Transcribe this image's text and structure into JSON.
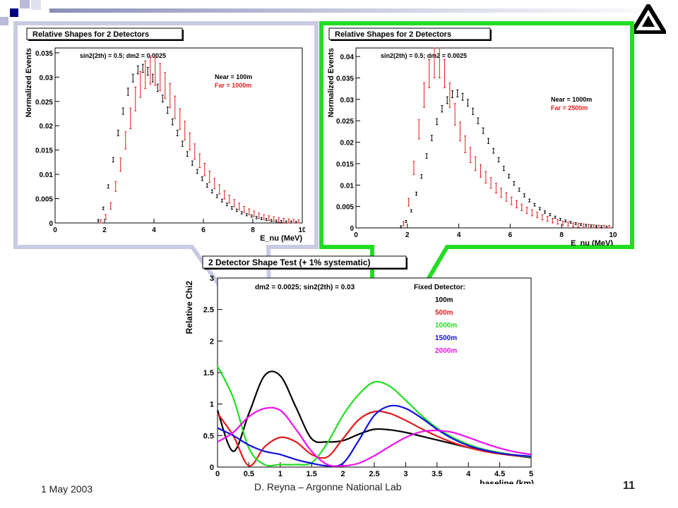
{
  "slide": {
    "date": "1 May 2003",
    "author": "D. Reyna – Argonne National Lab",
    "page": "11"
  },
  "colors": {
    "callout_left": "#c9cbe3",
    "callout_right": "#22dd22",
    "near": "#000000",
    "far": "#e31a1c"
  },
  "chart_data": [
    {
      "type": "line",
      "title": "Relative Shapes for 2 Detectors",
      "annotation": "sin2(2th) = 0.5; dm2 = 0.0025",
      "xlabel": "E_nu (MeV)",
      "ylabel": "Normalized Events",
      "xlim": [
        0,
        10
      ],
      "ylim": [
        0,
        0.036
      ],
      "xticks": [
        "0",
        "2",
        "4",
        "6",
        "8",
        "10"
      ],
      "yticks": [
        "0",
        "0.005",
        "0.01",
        "0.015",
        "0.02",
        "0.025",
        "0.03",
        "0.035"
      ],
      "legend": [
        {
          "name": "Near = 100m",
          "color": "#000000"
        },
        {
          "name": "Far = 1000m",
          "color": "#e31a1c"
        }
      ],
      "x": [
        1.8,
        2.0,
        2.2,
        2.4,
        2.6,
        2.8,
        3.0,
        3.2,
        3.4,
        3.6,
        3.8,
        4.0,
        4.2,
        4.4,
        4.6,
        4.8,
        5.0,
        5.2,
        5.4,
        5.6,
        5.8,
        6.0,
        6.2,
        6.4,
        6.6,
        6.8,
        7.0,
        7.2,
        7.4,
        7.6,
        7.8,
        8.0,
        8.2,
        8.4,
        8.6,
        8.8,
        9.0,
        9.2,
        9.4,
        9.6,
        9.8
      ],
      "series": [
        {
          "name": "Near = 100m",
          "values": [
            0.0005,
            0.003,
            0.0075,
            0.013,
            0.0185,
            0.023,
            0.027,
            0.0298,
            0.0315,
            0.0318,
            0.0312,
            0.0298,
            0.0278,
            0.0256,
            0.0232,
            0.0208,
            0.0185,
            0.0163,
            0.0142,
            0.0123,
            0.0106,
            0.0091,
            0.0077,
            0.0065,
            0.0055,
            0.0046,
            0.0038,
            0.0031,
            0.0026,
            0.0021,
            0.0017,
            0.0014,
            0.0011,
            0.0009,
            0.0007,
            0.0005,
            0.0004,
            0.0003,
            0.0002,
            0.0002,
            0.0001
          ]
        },
        {
          "name": "Far = 1000m",
          "values": [
            0.0002,
            0.0012,
            0.0035,
            0.0075,
            0.012,
            0.017,
            0.0215,
            0.0255,
            0.0285,
            0.0305,
            0.0315,
            0.0312,
            0.03,
            0.0283,
            0.0262,
            0.0238,
            0.0214,
            0.019,
            0.0168,
            0.0147,
            0.0128,
            0.011,
            0.0095,
            0.0081,
            0.0069,
            0.0058,
            0.0049,
            0.0041,
            0.0034,
            0.0028,
            0.0023,
            0.0019,
            0.0015,
            0.0012,
            0.001,
            0.0008,
            0.0006,
            0.0005,
            0.0004,
            0.0003,
            0.0002
          ]
        }
      ]
    },
    {
      "type": "line",
      "title": "Relative Shapes for 2 Detectors",
      "annotation": "sin2(2th) = 0.5; dm2 = 0.0025",
      "xlabel": "E_nu (MeV)",
      "ylabel": "Normalized Events",
      "xlim": [
        0,
        10
      ],
      "ylim": [
        0,
        0.042
      ],
      "xticks": [
        "0",
        "2",
        "4",
        "6",
        "8",
        "10"
      ],
      "yticks": [
        "0",
        "0.005",
        "0.01",
        "0.015",
        "0.02",
        "0.025",
        "0.03",
        "0.035",
        "0.04"
      ],
      "legend": [
        {
          "name": "Near = 1000m",
          "color": "#000000"
        },
        {
          "name": "Far = 2500m",
          "color": "#e31a1c"
        }
      ],
      "x": [
        1.8,
        2.0,
        2.2,
        2.4,
        2.6,
        2.8,
        3.0,
        3.2,
        3.4,
        3.6,
        3.8,
        4.0,
        4.2,
        4.4,
        4.6,
        4.8,
        5.0,
        5.2,
        5.4,
        5.6,
        5.8,
        6.0,
        6.2,
        6.4,
        6.6,
        6.8,
        7.0,
        7.2,
        7.4,
        7.6,
        7.8,
        8.0,
        8.2,
        8.4,
        8.6,
        8.8,
        9.0,
        9.2,
        9.4,
        9.6,
        9.8
      ],
      "series": [
        {
          "name": "Near = 1000m",
          "values": [
            0.0003,
            0.0015,
            0.004,
            0.008,
            0.012,
            0.0168,
            0.021,
            0.0248,
            0.0278,
            0.0298,
            0.0312,
            0.0314,
            0.0306,
            0.0292,
            0.0272,
            0.025,
            0.0227,
            0.0203,
            0.018,
            0.0159,
            0.0139,
            0.0121,
            0.0104,
            0.0089,
            0.0076,
            0.0064,
            0.0054,
            0.0045,
            0.0037,
            0.0031,
            0.0025,
            0.002,
            0.0016,
            0.0013,
            0.001,
            0.0008,
            0.0006,
            0.0005,
            0.0004,
            0.0003,
            0.0002
          ]
        },
        {
          "name": "Far = 2500m",
          "values": [
            0.001,
            0.006,
            0.014,
            0.023,
            0.031,
            0.036,
            0.0385,
            0.0385,
            0.036,
            0.031,
            0.0265,
            0.0225,
            0.0195,
            0.017,
            0.015,
            0.0133,
            0.0118,
            0.0105,
            0.0093,
            0.0082,
            0.0072,
            0.0063,
            0.0055,
            0.0048,
            0.0041,
            0.0035,
            0.003,
            0.0025,
            0.0021,
            0.0017,
            0.0014,
            0.0011,
            0.0009,
            0.0007,
            0.0006,
            0.0005,
            0.0004,
            0.0003,
            0.0002,
            0.0002,
            0.0001
          ]
        }
      ]
    },
    {
      "type": "line",
      "title": "2 Detector Shape Test (+ 1% systematic)",
      "annotation": "dm2 = 0.0025; sin2(2th) = 0.03",
      "legend_title": "Fixed Detector:",
      "xlabel": "baseline (km)",
      "ylabel": "Relative Chi2",
      "xlim": [
        0,
        5
      ],
      "ylim": [
        0,
        3
      ],
      "xticks": [
        "0",
        "0.5",
        "1",
        "1.5",
        "2",
        "2.5",
        "3",
        "3.5",
        "4",
        "4.5",
        "5"
      ],
      "yticks": [
        "0",
        "0.5",
        "1",
        "1.5",
        "2",
        "2.5",
        "3"
      ],
      "x": [
        0,
        0.25,
        0.5,
        0.75,
        1,
        1.25,
        1.5,
        1.75,
        2,
        2.25,
        2.5,
        2.75,
        3,
        3.25,
        3.5,
        3.75,
        4,
        4.25,
        4.5,
        4.75,
        5
      ],
      "series": [
        {
          "name": "100m",
          "color": "#000000",
          "values": [
            0.9,
            0.25,
            0.85,
            1.45,
            1.45,
            0.95,
            0.45,
            0.4,
            0.42,
            0.52,
            0.6,
            0.59,
            0.55,
            0.49,
            0.43,
            0.37,
            0.31,
            0.26,
            0.22,
            0.18,
            0.15
          ]
        },
        {
          "name": "500m",
          "color": "#e31a1c",
          "values": [
            0.85,
            0.5,
            0.02,
            0.32,
            0.47,
            0.4,
            0.2,
            0.16,
            0.45,
            0.75,
            0.88,
            0.85,
            0.74,
            0.61,
            0.49,
            0.39,
            0.31,
            0.25,
            0.21,
            0.18,
            0.16
          ]
        },
        {
          "name": "1000m",
          "color": "#22dd22",
          "values": [
            1.6,
            1.1,
            0.3,
            0.04,
            0.04,
            0.04,
            0.07,
            0.38,
            0.82,
            1.15,
            1.35,
            1.28,
            1.06,
            0.82,
            0.62,
            0.47,
            0.36,
            0.28,
            0.23,
            0.19,
            0.16
          ]
        },
        {
          "name": "1500m",
          "color": "#1111dd",
          "values": [
            0.62,
            0.5,
            0.35,
            0.25,
            0.2,
            0.12,
            0.06,
            0.02,
            0.06,
            0.42,
            0.82,
            0.97,
            0.93,
            0.78,
            0.6,
            0.45,
            0.34,
            0.27,
            0.22,
            0.19,
            0.17
          ]
        },
        {
          "name": "2000m",
          "color": "#ee11ee",
          "values": [
            0.4,
            0.55,
            0.8,
            0.93,
            0.9,
            0.6,
            0.25,
            0.04,
            0.02,
            0.06,
            0.18,
            0.33,
            0.47,
            0.56,
            0.58,
            0.55,
            0.47,
            0.38,
            0.3,
            0.24,
            0.2
          ]
        }
      ]
    }
  ]
}
